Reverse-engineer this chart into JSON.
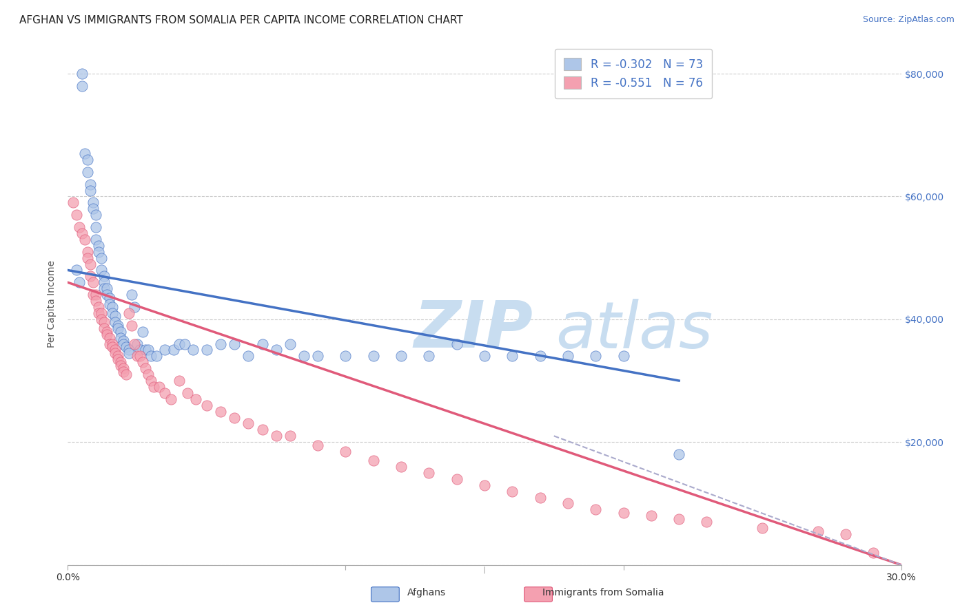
{
  "title": "AFGHAN VS IMMIGRANTS FROM SOMALIA PER CAPITA INCOME CORRELATION CHART",
  "source": "Source: ZipAtlas.com",
  "ylabel": "Per Capita Income",
  "xlim": [
    0.0,
    0.3
  ],
  "ylim": [
    0,
    85000
  ],
  "yticks": [
    0,
    20000,
    40000,
    60000,
    80000
  ],
  "ytick_labels": [
    "",
    "$20,000",
    "$40,000",
    "$60,000",
    "$80,000"
  ],
  "bg_color": "#ffffff",
  "grid_color": "#cccccc",
  "blue_scatter_color": "#aec6e8",
  "pink_scatter_color": "#f4a0b0",
  "blue_line_color": "#4472c4",
  "pink_line_color": "#e05a7a",
  "legend_blue_fill": "#aec6e8",
  "legend_pink_fill": "#f4a0b0",
  "legend_text_color": "#4472c4",
  "watermark_zip": "ZIP",
  "watermark_atlas": "atlas",
  "watermark_color_zip": "#c8ddf0",
  "watermark_color_atlas": "#c8ddf0",
  "R_blue": -0.302,
  "N_blue": 73,
  "R_pink": -0.551,
  "N_pink": 76,
  "blue_scatter_x": [
    0.003,
    0.004,
    0.005,
    0.005,
    0.006,
    0.007,
    0.007,
    0.008,
    0.008,
    0.009,
    0.009,
    0.01,
    0.01,
    0.01,
    0.011,
    0.011,
    0.012,
    0.012,
    0.013,
    0.013,
    0.013,
    0.014,
    0.014,
    0.015,
    0.015,
    0.016,
    0.016,
    0.017,
    0.017,
    0.018,
    0.018,
    0.019,
    0.019,
    0.02,
    0.02,
    0.021,
    0.022,
    0.022,
    0.023,
    0.024,
    0.025,
    0.026,
    0.027,
    0.028,
    0.029,
    0.03,
    0.032,
    0.035,
    0.038,
    0.04,
    0.042,
    0.045,
    0.05,
    0.055,
    0.06,
    0.065,
    0.07,
    0.075,
    0.08,
    0.085,
    0.09,
    0.1,
    0.11,
    0.12,
    0.13,
    0.14,
    0.15,
    0.16,
    0.17,
    0.18,
    0.19,
    0.2,
    0.22
  ],
  "blue_scatter_y": [
    48000,
    46000,
    80000,
    78000,
    67000,
    66000,
    64000,
    62000,
    61000,
    59000,
    58000,
    57000,
    55000,
    53000,
    52000,
    51000,
    50000,
    48000,
    47000,
    46000,
    45000,
    45000,
    44000,
    43500,
    42500,
    42000,
    41000,
    40500,
    39500,
    39000,
    38500,
    38000,
    37000,
    36500,
    36000,
    35500,
    35000,
    34500,
    44000,
    42000,
    36000,
    35000,
    38000,
    35000,
    35000,
    34000,
    34000,
    35000,
    35000,
    36000,
    36000,
    35000,
    35000,
    36000,
    36000,
    34000,
    36000,
    35000,
    36000,
    34000,
    34000,
    34000,
    34000,
    34000,
    34000,
    36000,
    34000,
    34000,
    34000,
    34000,
    34000,
    34000,
    18000
  ],
  "pink_scatter_x": [
    0.002,
    0.003,
    0.004,
    0.005,
    0.006,
    0.007,
    0.007,
    0.008,
    0.008,
    0.009,
    0.009,
    0.01,
    0.01,
    0.011,
    0.011,
    0.012,
    0.012,
    0.013,
    0.013,
    0.014,
    0.014,
    0.015,
    0.015,
    0.016,
    0.016,
    0.017,
    0.017,
    0.018,
    0.018,
    0.019,
    0.019,
    0.02,
    0.02,
    0.021,
    0.022,
    0.023,
    0.024,
    0.025,
    0.026,
    0.027,
    0.028,
    0.029,
    0.03,
    0.031,
    0.033,
    0.035,
    0.037,
    0.04,
    0.043,
    0.046,
    0.05,
    0.055,
    0.06,
    0.065,
    0.07,
    0.075,
    0.08,
    0.09,
    0.1,
    0.11,
    0.12,
    0.13,
    0.14,
    0.15,
    0.16,
    0.17,
    0.18,
    0.19,
    0.2,
    0.21,
    0.22,
    0.23,
    0.25,
    0.27,
    0.28,
    0.29
  ],
  "pink_scatter_y": [
    59000,
    57000,
    55000,
    54000,
    53000,
    51000,
    50000,
    49000,
    47000,
    46000,
    44000,
    44000,
    43000,
    42000,
    41000,
    41000,
    40000,
    39500,
    38500,
    38000,
    37500,
    37000,
    36000,
    36000,
    35500,
    35000,
    34500,
    34000,
    33500,
    33000,
    32500,
    32000,
    31500,
    31000,
    41000,
    39000,
    36000,
    34000,
    34000,
    33000,
    32000,
    31000,
    30000,
    29000,
    29000,
    28000,
    27000,
    30000,
    28000,
    27000,
    26000,
    25000,
    24000,
    23000,
    22000,
    21000,
    21000,
    19500,
    18500,
    17000,
    16000,
    15000,
    14000,
    13000,
    12000,
    11000,
    10000,
    9000,
    8500,
    8000,
    7500,
    7000,
    6000,
    5500,
    5000,
    2000
  ],
  "blue_line_x": [
    0.0,
    0.22
  ],
  "blue_line_y": [
    48000,
    30000
  ],
  "pink_line_x": [
    0.0,
    0.3
  ],
  "pink_line_y": [
    46000,
    0
  ],
  "dashed_line_x": [
    0.175,
    0.3
  ],
  "dashed_line_y": [
    21000,
    0
  ],
  "title_fontsize": 11,
  "source_fontsize": 9,
  "axis_label_fontsize": 10,
  "tick_fontsize": 10,
  "legend_fontsize": 12
}
